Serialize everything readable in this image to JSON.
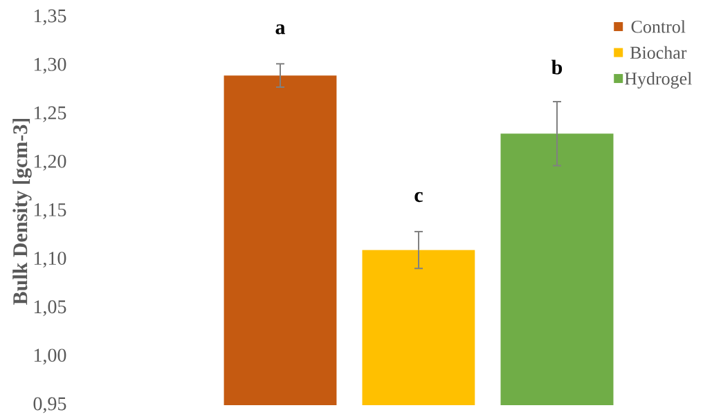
{
  "chart_data": {
    "type": "bar",
    "ylabel": "Bulk Density [gcm-3]",
    "categories": [
      null
    ],
    "series": [
      {
        "name": "Control",
        "color": "#c55a11",
        "values": [
          1.29
        ],
        "errors": [
          0.012
        ]
      },
      {
        "name": "Biochar",
        "color": "#ffc000",
        "values": [
          1.11
        ],
        "errors": [
          0.019
        ]
      },
      {
        "name": "Hydrogel",
        "color": "#70ad47",
        "values": [
          1.23
        ],
        "errors": [
          0.033
        ]
      }
    ],
    "ylim": [
      0.95,
      1.35
    ],
    "yticks": [
      {
        "value": 0.95,
        "label": "0,95"
      },
      {
        "value": 1.0,
        "label": "1,00"
      },
      {
        "value": 1.05,
        "label": "1,05"
      },
      {
        "value": 1.1,
        "label": "1,10"
      },
      {
        "value": 1.15,
        "label": "1,15"
      },
      {
        "value": 1.2,
        "label": "1,20"
      },
      {
        "value": 1.25,
        "label": "1,25"
      },
      {
        "value": 1.3,
        "label": "1,30"
      },
      {
        "value": 1.35,
        "label": "1,35"
      }
    ],
    "annotations": [
      "a",
      "c",
      "b"
    ],
    "legend": "top right",
    "grid": false
  }
}
